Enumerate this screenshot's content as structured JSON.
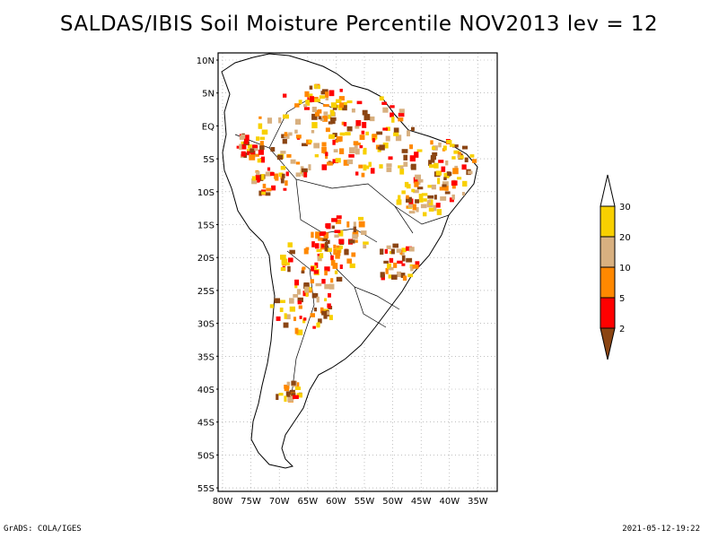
{
  "title": "SALDAS/IBIS Soil Moisture Percentile NOV2013 lev = 12",
  "lat_labels": [
    "10N",
    "5N",
    "EQ",
    "5S",
    "10S",
    "15S",
    "20S",
    "25S",
    "30S",
    "35S",
    "40S",
    "45S",
    "50S",
    "55S"
  ],
  "lon_labels": [
    "80W",
    "75W",
    "70W",
    "65W",
    "60W",
    "55W",
    "50W",
    "45W",
    "40W",
    "35W"
  ],
  "legend": {
    "ticks": [
      "30",
      "20",
      "10",
      "5",
      "2"
    ],
    "colors": [
      "#ffffff",
      "#f8d000",
      "#d8b080",
      "#ff8800",
      "#ff0000",
      "#8b4513"
    ]
  },
  "footer": {
    "left": "GrADS: COLA/IGES",
    "right": "2021-05-12-19:22"
  }
}
